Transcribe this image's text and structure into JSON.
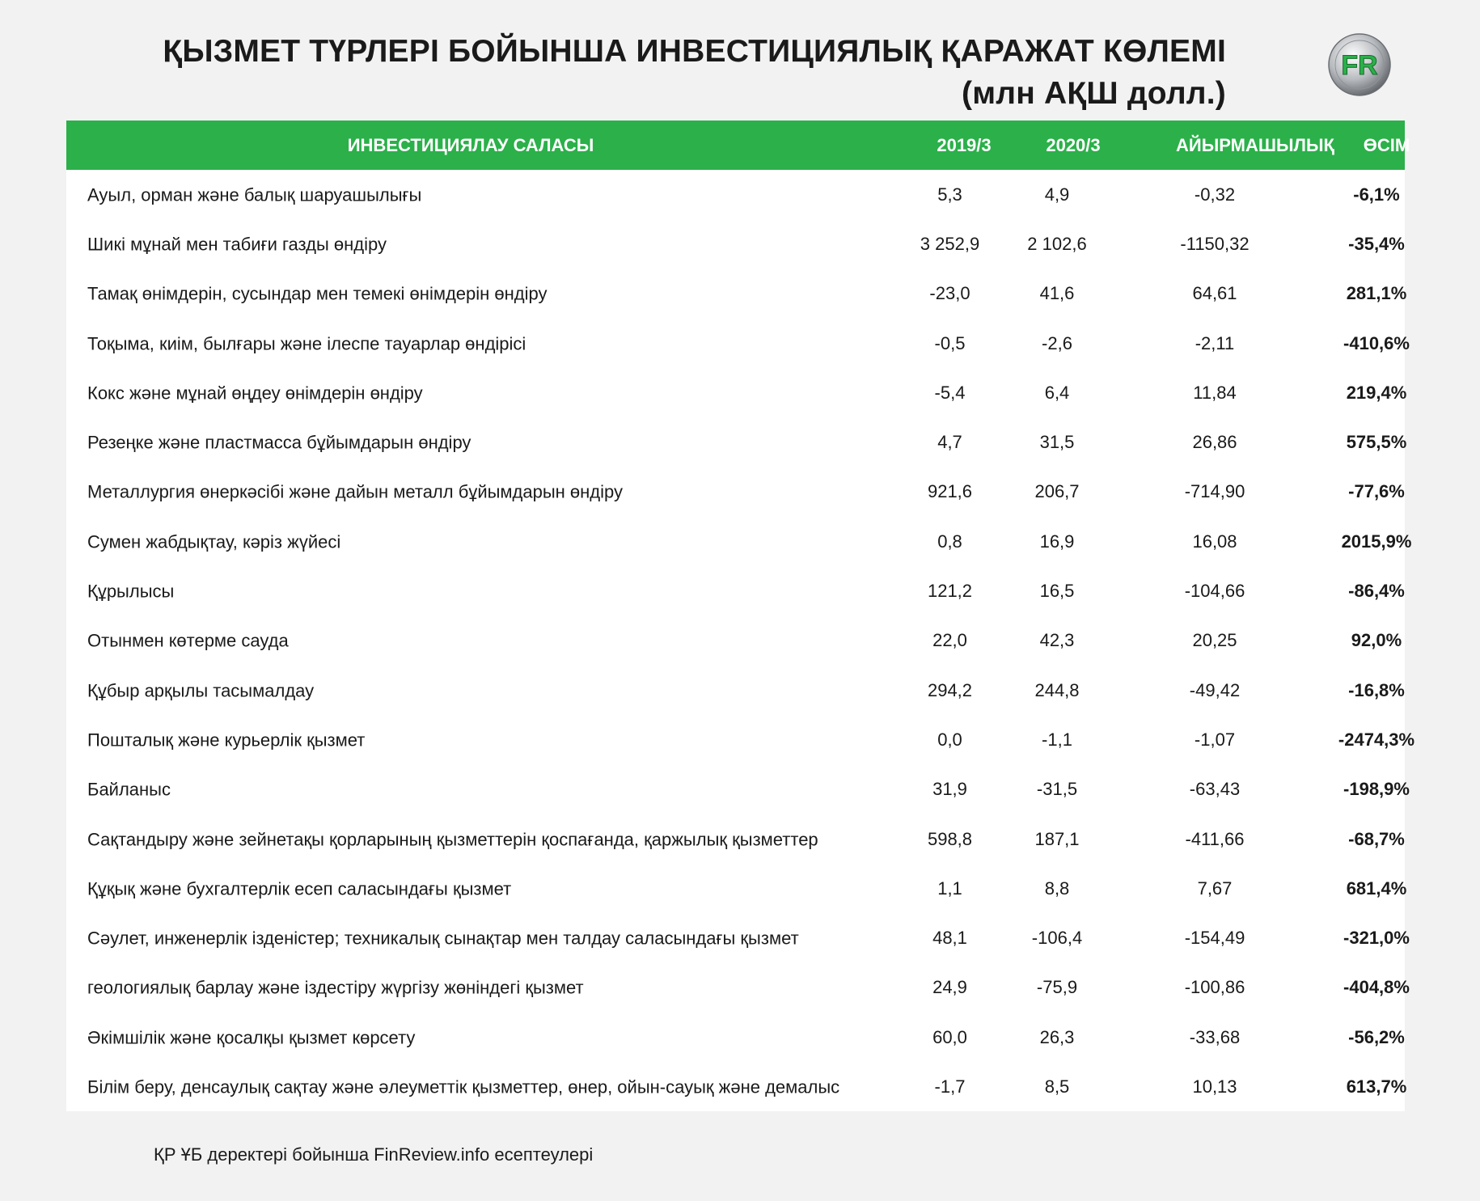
{
  "title": {
    "line1": "ҚЫЗМЕТ ТҮРЛЕРІ БОЙЫНША ИНВЕСТИЦИЯЛЫҚ ҚАРАЖАТ КӨЛЕМІ",
    "line2": "(млн АҚШ долл.)"
  },
  "logo": {
    "text": "FR",
    "icon": "finreview-logo-icon",
    "color": "#2bb04a"
  },
  "table": {
    "header": {
      "name": "ИНВЕСТИЦИЯЛАУ САЛАСЫ",
      "y2019": "2019/3",
      "y2020": "2020/3",
      "diff": "АЙЫРМАШЫЛЫҚ",
      "growth": "ӨСІМ"
    },
    "header_color": "#2bb04a",
    "rows": [
      {
        "name": "Ауыл, орман және балық шаруашылығы",
        "y2019": "5,3",
        "y2020": "4,9",
        "diff": "-0,32",
        "growth": "-6,1%"
      },
      {
        "name": "Шикі мұнай мен табиғи газды өндіру",
        "y2019": "3 252,9",
        "y2020": "2 102,6",
        "diff": "-1150,32",
        "growth": "-35,4%"
      },
      {
        "name": "Тамақ өнімдерін, сусындар мен темекі өнімдерін өндіру",
        "y2019": "-23,0",
        "y2020": "41,6",
        "diff": "64,61",
        "growth": "281,1%"
      },
      {
        "name": "Тоқыма, киім, былғары және ілеспе тауарлар өндірісі",
        "y2019": "-0,5",
        "y2020": "-2,6",
        "diff": "-2,11",
        "growth": "-410,6%"
      },
      {
        "name": "Кокс және мұнай өңдеу өнімдерін өндіру",
        "y2019": "-5,4",
        "y2020": "6,4",
        "diff": "11,84",
        "growth": "219,4%"
      },
      {
        "name": "Резеңке және пластмасса бұйымдарын өндіру",
        "y2019": "4,7",
        "y2020": "31,5",
        "diff": "26,86",
        "growth": "575,5%"
      },
      {
        "name": "Металлургия өнеркәсібі және дайын металл бұйымдарын өндіру",
        "y2019": "921,6",
        "y2020": "206,7",
        "diff": "-714,90",
        "growth": "-77,6%"
      },
      {
        "name": "Сумен жабдықтау, кәріз жүйесі",
        "y2019": "0,8",
        "y2020": "16,9",
        "diff": "16,08",
        "growth": "2015,9%"
      },
      {
        "name": "Құрылысы",
        "y2019": "121,2",
        "y2020": "16,5",
        "diff": "-104,66",
        "growth": "-86,4%"
      },
      {
        "name": "Отынмен көтерме сауда",
        "y2019": "22,0",
        "y2020": "42,3",
        "diff": "20,25",
        "growth": "92,0%"
      },
      {
        "name": "Құбыр арқылы тасымалдау",
        "y2019": "294,2",
        "y2020": "244,8",
        "diff": "-49,42",
        "growth": "-16,8%"
      },
      {
        "name": "Пошталық және курьерлік қызмет",
        "y2019": "0,0",
        "y2020": "-1,1",
        "diff": "-1,07",
        "growth": "-2474,3%"
      },
      {
        "name": "Байланыс",
        "y2019": "31,9",
        "y2020": "-31,5",
        "diff": "-63,43",
        "growth": "-198,9%"
      },
      {
        "name": "Сақтандыру және зейнетақы қорларының қызметтерін қоспағанда, қаржылық қызметтер",
        "y2019": "598,8",
        "y2020": "187,1",
        "diff": "-411,66",
        "growth": "-68,7%"
      },
      {
        "name": "Құқық және бухгалтерлік есеп саласындағы қызмет",
        "y2019": "1,1",
        "y2020": "8,8",
        "diff": "7,67",
        "growth": "681,4%"
      },
      {
        "name": "Сәулет, инженерлік ізденістер; техникалық сынақтар мен талдау саласындағы қызмет",
        "y2019": "48,1",
        "y2020": "-106,4",
        "diff": "-154,49",
        "growth": "-321,0%"
      },
      {
        "name": "геологиялық барлау және іздестіру жүргізу жөніндегі қызмет",
        "y2019": "24,9",
        "y2020": "-75,9",
        "diff": "-100,86",
        "growth": "-404,8%"
      },
      {
        "name": "Әкімшілік және қосалқы қызмет көрсету",
        "y2019": "60,0",
        "y2020": "26,3",
        "diff": "-33,68",
        "growth": "-56,2%"
      },
      {
        "name": "Білім беру, денсаулық сақтау және әлеуметтік қызметтер, өнер, ойын-сауық және демалыс",
        "y2019": "-1,7",
        "y2020": "8,5",
        "diff": "10,13",
        "growth": "613,7%"
      }
    ]
  },
  "footer": {
    "source": "ҚР ҰБ деректері бойынша FinReview.info есептеулері"
  }
}
